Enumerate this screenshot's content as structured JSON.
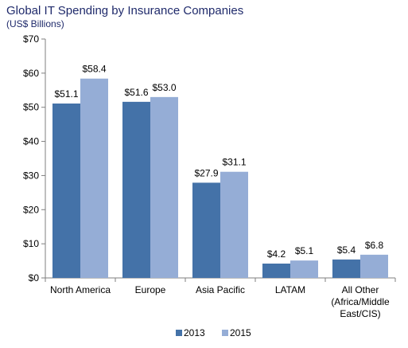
{
  "chart_data": {
    "type": "bar",
    "title": "Global IT Spending by Insurance Companies",
    "subtitle": "(US$ Billions)",
    "categories": [
      [
        "North America"
      ],
      [
        "Europe"
      ],
      [
        "Asia Pacific"
      ],
      [
        "LATAM"
      ],
      [
        "All Other",
        "(Africa/Middle",
        "East/CIS)"
      ]
    ],
    "series": [
      {
        "name": "2013",
        "color": "#4472a8",
        "values": [
          51.1,
          51.6,
          27.9,
          4.2,
          5.4
        ],
        "labels": [
          "$51.1",
          "$51.6",
          "$27.9",
          "$4.2",
          "$5.4"
        ]
      },
      {
        "name": "2015",
        "color": "#95add6",
        "values": [
          58.4,
          53.0,
          31.1,
          5.1,
          6.8
        ],
        "labels": [
          "$58.4",
          "$53.0",
          "$31.1",
          "$5.1",
          "$6.8"
        ]
      }
    ],
    "ylim": [
      0,
      70
    ],
    "yticks": [
      0,
      10,
      20,
      30,
      40,
      50,
      60,
      70
    ],
    "ytick_labels": [
      "$0",
      "$10",
      "$20",
      "$30",
      "$40",
      "$50",
      "$60",
      "$70"
    ],
    "grid": false,
    "legend": "bottom-center"
  }
}
